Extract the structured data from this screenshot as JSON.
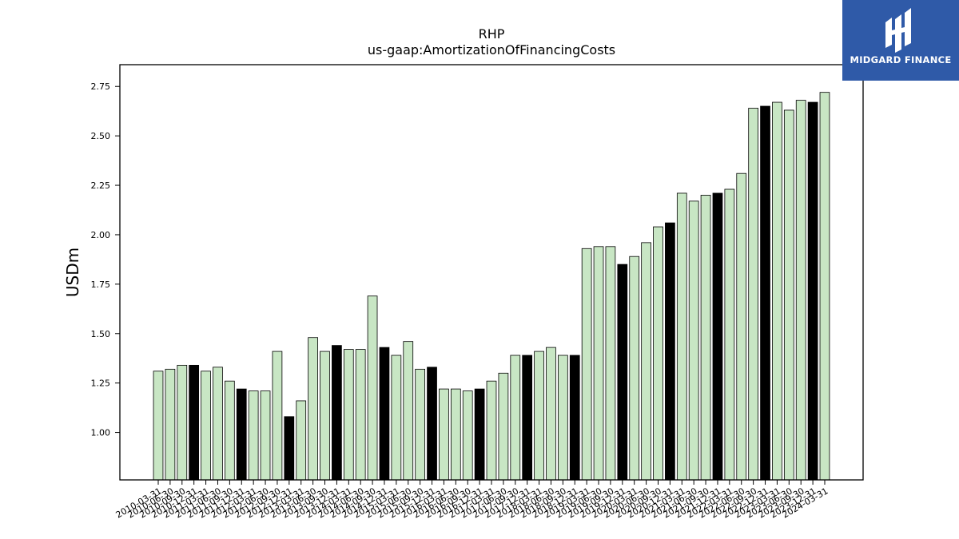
{
  "chart_data": {
    "type": "bar",
    "title": "RHP",
    "subtitle": "us-gaap:AmortizationOfFinancingCosts",
    "ylabel": "USDm",
    "xlabel": "",
    "ylim": [
      0.76,
      2.86
    ],
    "yticks": [
      "1.00",
      "1.25",
      "1.50",
      "1.75",
      "2.00",
      "2.25",
      "2.50",
      "2.75"
    ],
    "grid": false,
    "colors": {
      "bar_light": "#c8e6c4",
      "bar_dark": "#000000",
      "edge": "#000000"
    },
    "categories": [
      "2010-03-31",
      "2010-06-30",
      "2010-09-30",
      "2010-12-31",
      "2011-03-31",
      "2011-06-30",
      "2011-09-30",
      "2011-12-31",
      "2012-03-31",
      "2012-06-30",
      "2012-09-30",
      "2012-12-31",
      "2013-03-31",
      "2013-06-30",
      "2013-09-30",
      "2013-12-31",
      "2014-03-31",
      "2014-06-30",
      "2014-09-30",
      "2014-12-31",
      "2015-03-31",
      "2015-06-30",
      "2015-09-30",
      "2015-12-31",
      "2016-03-31",
      "2016-06-30",
      "2016-09-30",
      "2016-12-31",
      "2017-03-31",
      "2017-06-30",
      "2017-09-30",
      "2017-12-31",
      "2018-03-31",
      "2018-06-30",
      "2018-09-30",
      "2018-12-31",
      "2019-03-31",
      "2019-06-30",
      "2019-09-30",
      "2019-12-31",
      "2020-03-31",
      "2020-06-30",
      "2020-09-30",
      "2020-12-31",
      "2021-03-31",
      "2021-06-30",
      "2021-09-30",
      "2021-12-31",
      "2022-03-31",
      "2022-06-30",
      "2022-09-30",
      "2022-12-31",
      "2023-03-31",
      "2023-06-30",
      "2023-09-30",
      "2023-12-31",
      "2024-03-31"
    ],
    "values": [
      1.31,
      1.32,
      1.34,
      1.34,
      1.31,
      1.33,
      1.26,
      1.22,
      1.21,
      1.21,
      1.41,
      1.08,
      1.16,
      1.48,
      1.41,
      1.44,
      1.42,
      1.42,
      1.69,
      1.43,
      1.39,
      1.46,
      1.32,
      1.33,
      1.22,
      1.22,
      1.21,
      1.22,
      1.26,
      1.3,
      1.39,
      1.39,
      1.41,
      1.43,
      1.39,
      1.39,
      1.93,
      1.94,
      1.94,
      1.85,
      1.89,
      1.96,
      2.04,
      2.06,
      2.21,
      2.17,
      2.2,
      2.21,
      2.23,
      2.31,
      2.64,
      2.65,
      2.67,
      2.63,
      2.68,
      2.67,
      2.72
    ],
    "highlight": [
      false,
      false,
      false,
      true,
      false,
      false,
      false,
      true,
      false,
      false,
      false,
      true,
      false,
      false,
      false,
      true,
      false,
      false,
      false,
      true,
      false,
      false,
      false,
      true,
      false,
      false,
      false,
      true,
      false,
      false,
      false,
      true,
      false,
      false,
      false,
      true,
      false,
      false,
      false,
      true,
      false,
      false,
      false,
      true,
      false,
      false,
      false,
      true,
      false,
      false,
      false,
      true,
      false,
      false,
      false,
      true,
      false
    ]
  },
  "logo": {
    "text": "MIDGARD FINANCE"
  }
}
